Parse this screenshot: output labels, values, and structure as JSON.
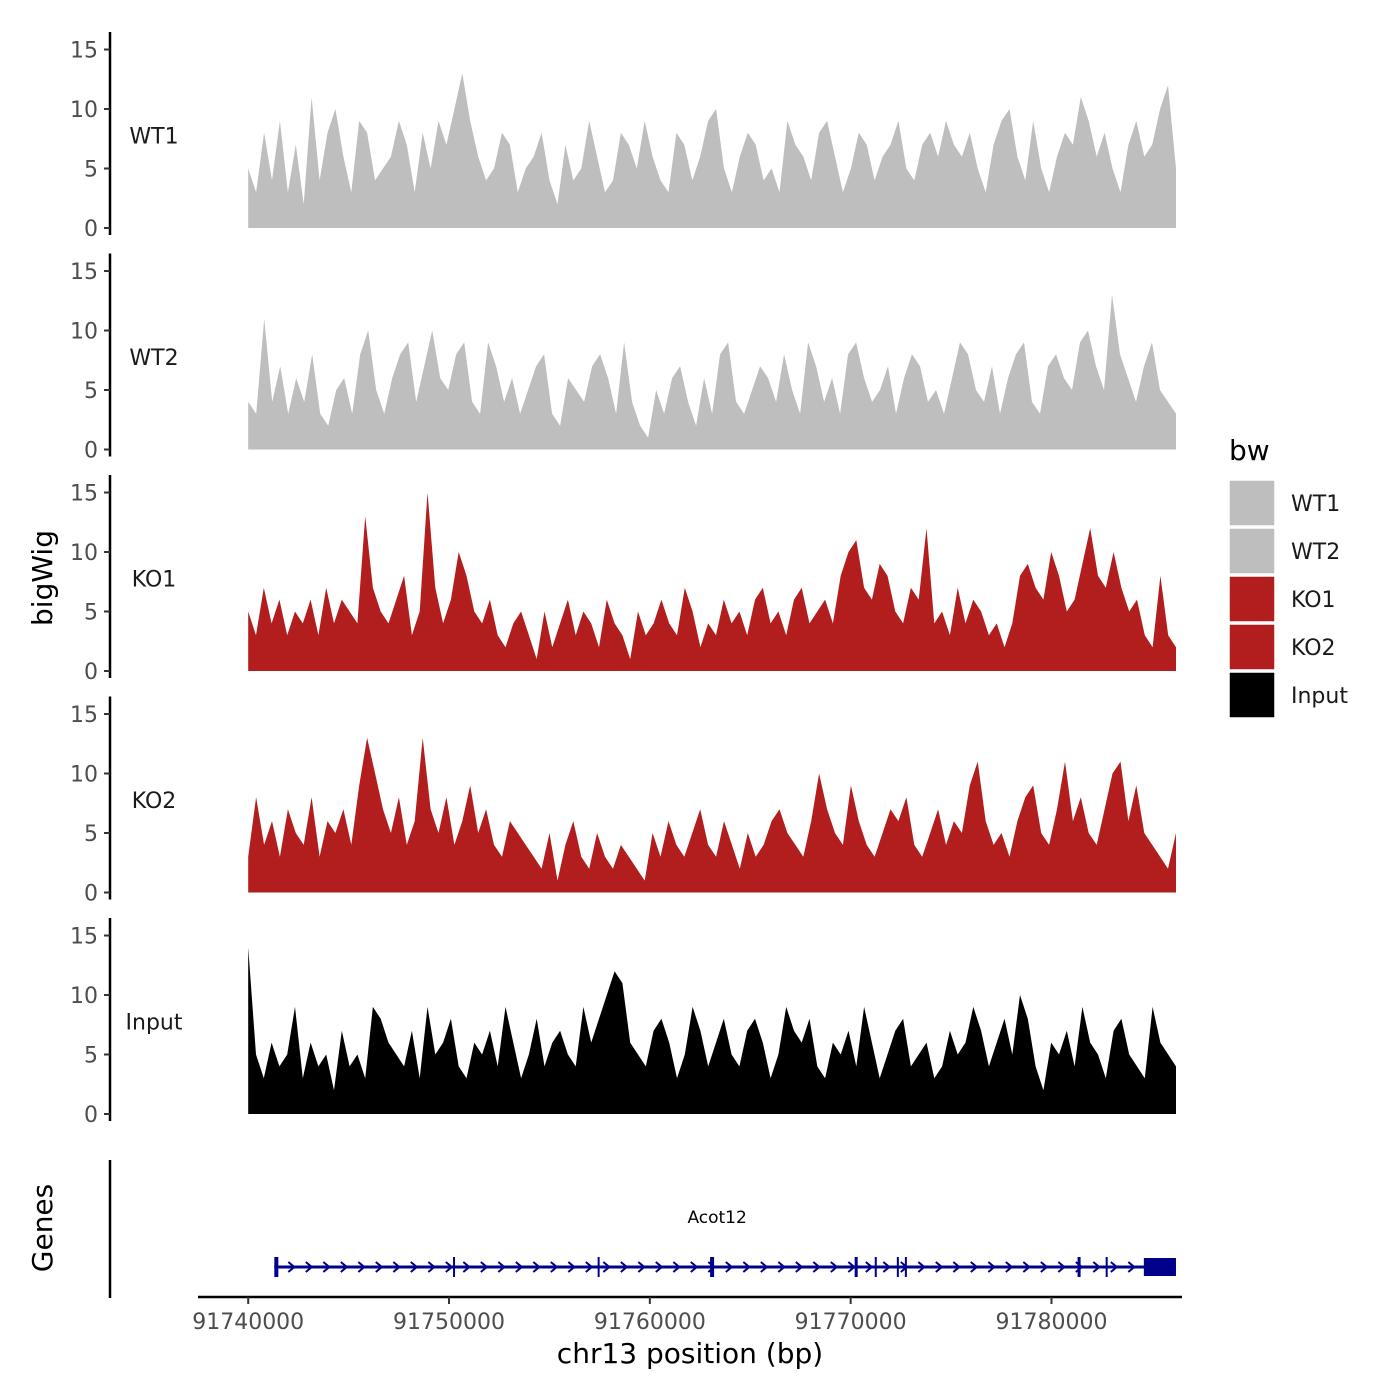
{
  "chart_data": {
    "type": "area",
    "title": "",
    "xlabel": "chr13 position (bp)",
    "ylabel": "bigWig",
    "genes_label": "Genes",
    "xlim": [
      91737500,
      91786500
    ],
    "x_ticks": [
      91740000,
      91750000,
      91760000,
      91770000,
      91780000
    ],
    "x_tick_labels": [
      "91740000",
      "91750000",
      "91760000",
      "91770000",
      "91780000"
    ],
    "ylim": [
      0,
      15.8
    ],
    "y_ticks": [
      0,
      5,
      10,
      15
    ],
    "y_tick_labels": [
      "0",
      "5",
      "10",
      "15"
    ],
    "signal_range": [
      91740000,
      91786200
    ],
    "series": [
      {
        "name": "WT1",
        "color": "#bebebe",
        "values": [
          5,
          3,
          8,
          4,
          9,
          3,
          7,
          2,
          11,
          4,
          8,
          10,
          6,
          3,
          9,
          8,
          4,
          5,
          6,
          9,
          7,
          3,
          8,
          5,
          9,
          7,
          10,
          13,
          9,
          6,
          4,
          5,
          8,
          7,
          3,
          5,
          6,
          8,
          4,
          2,
          7,
          4,
          5,
          9,
          6,
          3,
          4,
          8,
          7,
          5,
          9,
          6,
          4,
          3,
          8,
          7,
          4,
          6,
          9,
          10,
          5,
          3,
          6,
          8,
          7,
          4,
          5,
          3,
          9,
          7,
          6,
          4,
          8,
          9,
          6,
          3,
          5,
          8,
          7,
          4,
          6,
          7,
          9,
          5,
          4,
          7,
          8,
          6,
          9,
          7,
          6,
          8,
          5,
          3,
          7,
          9,
          10,
          6,
          4,
          9,
          5,
          3,
          6,
          8,
          7,
          11,
          9,
          6,
          8,
          5,
          3,
          7,
          9,
          6,
          7,
          10,
          12,
          5
        ]
      },
      {
        "name": "WT2",
        "color": "#bebebe",
        "values": [
          4,
          3,
          11,
          4,
          7,
          3,
          6,
          4,
          8,
          3,
          2,
          5,
          6,
          3,
          8,
          10,
          5,
          3,
          6,
          8,
          9,
          4,
          7,
          10,
          6,
          5,
          8,
          9,
          4,
          3,
          9,
          7,
          4,
          6,
          3,
          5,
          7,
          8,
          3,
          2,
          6,
          5,
          4,
          7,
          8,
          6,
          3,
          9,
          4,
          2,
          1,
          5,
          3,
          6,
          7,
          4,
          2,
          6,
          3,
          8,
          9,
          4,
          3,
          5,
          7,
          6,
          4,
          8,
          5,
          3,
          9,
          7,
          4,
          6,
          3,
          8,
          9,
          6,
          4,
          5,
          7,
          3,
          6,
          8,
          7,
          4,
          5,
          3,
          6,
          9,
          8,
          5,
          4,
          7,
          3,
          6,
          8,
          9,
          4,
          3,
          7,
          8,
          6,
          5,
          9,
          10,
          7,
          5,
          13,
          8,
          6,
          4,
          7,
          9,
          5,
          4,
          3
        ]
      },
      {
        "name": "KO1",
        "color": "#b21e1e",
        "values": [
          5,
          3,
          7,
          4,
          6,
          3,
          5,
          4,
          6,
          3,
          7,
          4,
          6,
          5,
          4,
          13,
          7,
          5,
          4,
          6,
          8,
          3,
          5,
          15,
          7,
          4,
          6,
          10,
          8,
          5,
          4,
          6,
          3,
          2,
          4,
          5,
          3,
          1,
          5,
          2,
          4,
          6,
          3,
          5,
          4,
          2,
          6,
          4,
          3,
          1,
          5,
          3,
          4,
          6,
          4,
          3,
          7,
          5,
          2,
          4,
          3,
          6,
          4,
          5,
          3,
          6,
          7,
          4,
          5,
          3,
          6,
          7,
          4,
          5,
          6,
          4,
          8,
          10,
          11,
          7,
          6,
          9,
          8,
          5,
          4,
          7,
          6,
          12,
          4,
          5,
          3,
          7,
          4,
          6,
          5,
          3,
          4,
          2,
          4,
          8,
          9,
          7,
          6,
          10,
          8,
          5,
          6,
          9,
          12,
          8,
          7,
          10,
          7,
          5,
          6,
          3,
          2,
          8,
          3,
          2
        ]
      },
      {
        "name": "KO2",
        "color": "#b21e1e",
        "values": [
          3,
          8,
          4,
          6,
          3,
          7,
          5,
          4,
          8,
          3,
          6,
          5,
          7,
          4,
          9,
          13,
          10,
          7,
          5,
          8,
          4,
          6,
          13,
          7,
          5,
          8,
          4,
          6,
          9,
          5,
          7,
          4,
          3,
          6,
          5,
          4,
          3,
          2,
          5,
          1,
          4,
          6,
          3,
          2,
          5,
          3,
          2,
          4,
          3,
          2,
          1,
          5,
          3,
          6,
          4,
          3,
          5,
          7,
          4,
          3,
          6,
          4,
          2,
          5,
          3,
          4,
          6,
          7,
          5,
          4,
          3,
          6,
          10,
          7,
          5,
          4,
          9,
          6,
          4,
          3,
          5,
          7,
          6,
          8,
          4,
          3,
          5,
          7,
          4,
          6,
          5,
          9,
          11,
          6,
          4,
          5,
          3,
          6,
          8,
          9,
          5,
          4,
          7,
          11,
          6,
          8,
          5,
          4,
          7,
          10,
          11,
          6,
          9,
          5,
          4,
          3,
          2,
          5
        ]
      },
      {
        "name": "Input",
        "color": "#000000",
        "values": [
          14,
          5,
          3,
          6,
          4,
          5,
          9,
          3,
          6,
          4,
          5,
          2,
          7,
          4,
          5,
          3,
          9,
          8,
          6,
          5,
          4,
          7,
          3,
          9,
          5,
          6,
          8,
          4,
          3,
          6,
          5,
          7,
          4,
          9,
          6,
          3,
          5,
          8,
          4,
          6,
          7,
          5,
          4,
          9,
          6,
          8,
          10,
          12,
          11,
          6,
          5,
          4,
          7,
          8,
          6,
          3,
          5,
          9,
          7,
          4,
          6,
          8,
          5,
          4,
          7,
          8,
          6,
          3,
          5,
          9,
          7,
          6,
          8,
          4,
          3,
          6,
          5,
          7,
          4,
          9,
          6,
          3,
          5,
          7,
          8,
          4,
          5,
          6,
          3,
          4,
          7,
          5,
          6,
          9,
          7,
          4,
          6,
          8,
          5,
          10,
          8,
          4,
          2,
          6,
          5,
          7,
          4,
          9,
          6,
          5,
          3,
          7,
          8,
          5,
          4,
          3,
          9,
          6,
          5,
          4
        ]
      }
    ],
    "gene": {
      "name": "Acot12",
      "color": "#00008b",
      "strand": "+",
      "start": 91741300,
      "end": 91786200,
      "exons": [
        [
          91741300,
          91741500
        ],
        [
          91750200,
          91750300
        ],
        [
          91757400,
          91757500
        ],
        [
          91763000,
          91763200
        ],
        [
          91770200,
          91770350
        ],
        [
          91771200,
          91771300
        ],
        [
          91772300,
          91772400
        ],
        [
          91772700,
          91772800
        ],
        [
          91781300,
          91781450
        ],
        [
          91782700,
          91782800
        ],
        [
          91784600,
          91786200
        ]
      ]
    },
    "legend": {
      "title": "bw",
      "position": "right",
      "entries": [
        {
          "label": "WT1",
          "color": "#bebebe"
        },
        {
          "label": "WT2",
          "color": "#bebebe"
        },
        {
          "label": "KO1",
          "color": "#b21e1e"
        },
        {
          "label": "KO2",
          "color": "#b21e1e"
        },
        {
          "label": "Input",
          "color": "#000000"
        }
      ]
    }
  }
}
